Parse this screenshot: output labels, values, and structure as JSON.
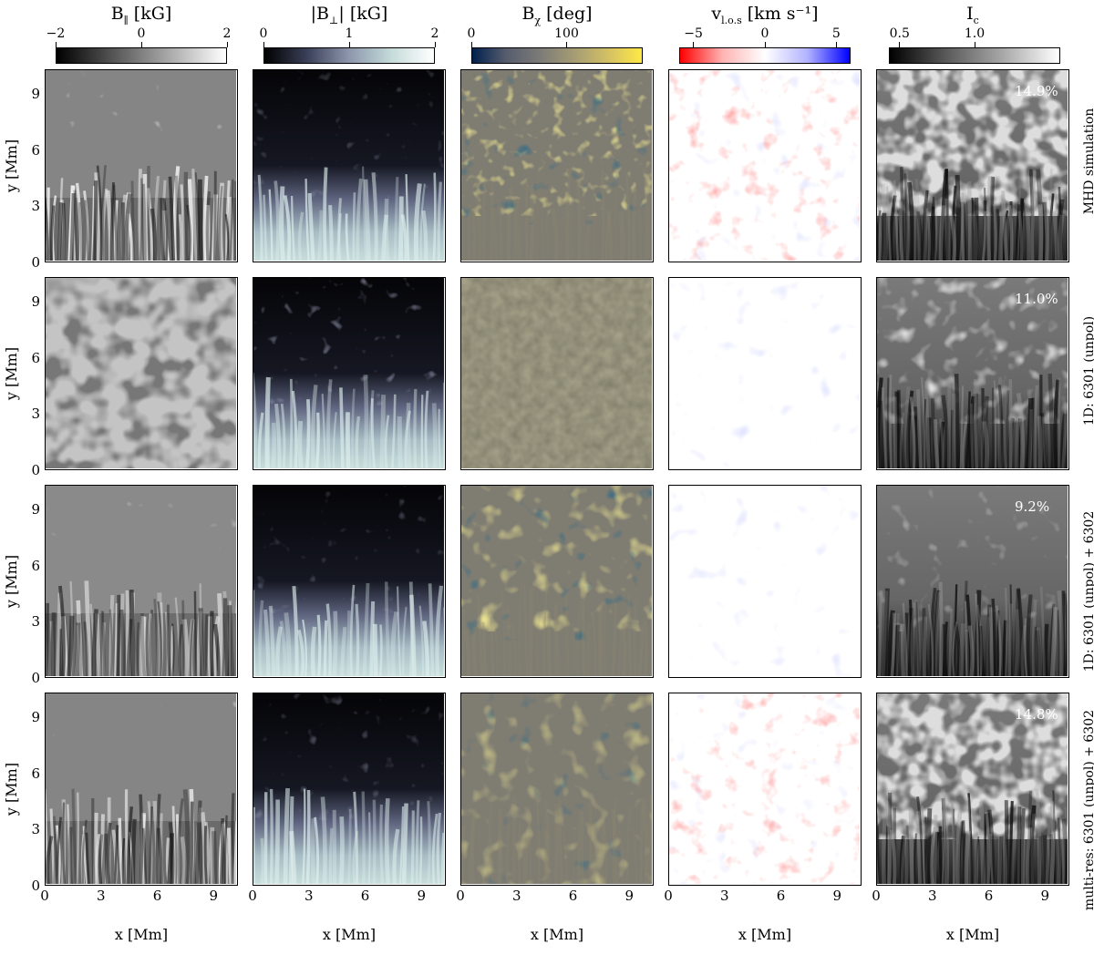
{
  "columns": [
    {
      "title": "B",
      "title_sub": "∥",
      "title_rest": "  [kG]",
      "ticks": [
        "−2",
        "0",
        "2"
      ],
      "ticks_pos": [
        0.0,
        0.5,
        1.0
      ],
      "colormap": [
        "#000000",
        "#ffffff"
      ]
    },
    {
      "title": "|B",
      "title_sub": "⊥",
      "title_rest": "|  [kG]",
      "ticks": [
        "0",
        "1",
        "2"
      ],
      "ticks_pos": [
        0.0,
        0.5,
        1.0
      ],
      "colormap": [
        "#000000",
        "#3a3f58",
        "#8d97ad",
        "#c5dcda",
        "#ffffff"
      ]
    },
    {
      "title": "B",
      "title_sub": "χ",
      "title_rest": "  [deg]",
      "ticks": [
        "0",
        "100"
      ],
      "ticks_pos": [
        0.0,
        0.556
      ],
      "colormap": [
        "#00204d",
        "#575d6d",
        "#7c7b78",
        "#a59c74",
        "#d3c064",
        "#ffe945"
      ]
    },
    {
      "title": "v",
      "title_sub": "l.o.s",
      "title_rest": "  [km s⁻¹]",
      "ticks": [
        "−5",
        "0",
        "5"
      ],
      "ticks_pos": [
        0.083,
        0.5,
        0.917
      ],
      "colormap": [
        "#ff0000",
        "#ffb3b3",
        "#ffffff",
        "#b3b3ff",
        "#0000ff"
      ]
    },
    {
      "title": "I",
      "title_sub": "c",
      "title_rest": "",
      "ticks": [
        "0.5",
        "1.0"
      ],
      "ticks_pos": [
        0.0625,
        0.5
      ],
      "colormap": [
        "#000000",
        "#5a5a5a",
        "#a8a8a8",
        "#ffffff"
      ]
    }
  ],
  "rows": [
    {
      "label": "MHD simulation",
      "contrast": "14.9%"
    },
    {
      "label": "1D: 6301 (unpol)",
      "contrast": "11.0%"
    },
    {
      "label": "1D: 6301 (unpol) + 6302",
      "contrast": "9.2%"
    },
    {
      "label": "multi-res: 6301 (unpol) + 6302",
      "contrast": "14.8%"
    }
  ],
  "axes": {
    "ylabel": "y [Mm]",
    "xlabel": "x [Mm]",
    "yticks": [
      "0",
      "3",
      "6",
      "9"
    ],
    "xticks": [
      "0",
      "3",
      "6",
      "9"
    ]
  },
  "colors": {
    "blue_dark": "#00204d",
    "yellow": "#ffe945",
    "red": "#ff0000",
    "blue": "#0000ff",
    "teal_light": "#c5dcda"
  }
}
